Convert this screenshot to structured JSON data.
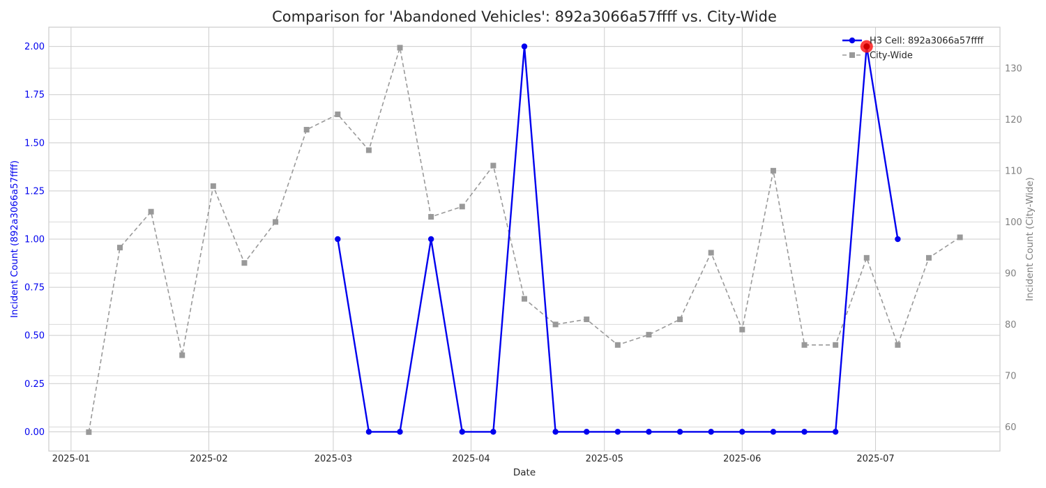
{
  "chart_data": {
    "type": "line",
    "title": "Comparison for 'Abandoned Vehicles': 892a3066a57ffff vs. City-Wide",
    "xlabel": "Date",
    "ylabel_left": "Incident Count (892a3066a57ffff)",
    "ylabel_right": "Incident Count (City-Wide)",
    "x_ticks": [
      "2025-01",
      "2025-02",
      "2025-03",
      "2025-04",
      "2025-05",
      "2025-06",
      "2025-07"
    ],
    "x_tick_dates": [
      "2025-01-01",
      "2025-02-01",
      "2025-03-01",
      "2025-04-01",
      "2025-05-01",
      "2025-06-01",
      "2025-07-01"
    ],
    "xlim": [
      "2024-12-27",
      "2025-07-29"
    ],
    "ylim_left": [
      -0.1,
      2.1
    ],
    "yticks_left": [
      0.0,
      0.25,
      0.5,
      0.75,
      1.0,
      1.25,
      1.5,
      1.75,
      2.0
    ],
    "ylim_right": [
      55.3,
      138.0
    ],
    "yticks_right": [
      60,
      70,
      80,
      90,
      100,
      110,
      120,
      130
    ],
    "grid": true,
    "legend_position": "top-right",
    "series": [
      {
        "name": "H3 Cell: 892a3066a57ffff",
        "axis": "left",
        "color": "#0000ee",
        "marker": "circle",
        "style": "solid",
        "x": [
          "2025-03-02",
          "2025-03-09",
          "2025-03-16",
          "2025-03-23",
          "2025-03-30",
          "2025-04-06",
          "2025-04-13",
          "2025-04-20",
          "2025-04-27",
          "2025-05-04",
          "2025-05-11",
          "2025-05-18",
          "2025-05-25",
          "2025-06-01",
          "2025-06-08",
          "2025-06-15",
          "2025-06-22",
          "2025-06-29",
          "2025-07-06"
        ],
        "y": [
          1,
          0,
          0,
          1,
          0,
          0,
          2,
          0,
          0,
          0,
          0,
          0,
          0,
          0,
          0,
          0,
          0,
          2,
          1
        ]
      },
      {
        "name": "City-Wide",
        "axis": "right",
        "color": "#999999",
        "marker": "square",
        "style": "dashed",
        "x": [
          "2025-01-05",
          "2025-01-12",
          "2025-01-19",
          "2025-01-26",
          "2025-02-02",
          "2025-02-09",
          "2025-02-16",
          "2025-02-23",
          "2025-03-02",
          "2025-03-09",
          "2025-03-16",
          "2025-03-23",
          "2025-03-30",
          "2025-04-06",
          "2025-04-13",
          "2025-04-20",
          "2025-04-27",
          "2025-05-04",
          "2025-05-11",
          "2025-05-18",
          "2025-05-25",
          "2025-06-01",
          "2025-06-08",
          "2025-06-15",
          "2025-06-22",
          "2025-06-29",
          "2025-07-06",
          "2025-07-13",
          "2025-07-20"
        ],
        "y": [
          59,
          95,
          102,
          74,
          107,
          92,
          100,
          118,
          121,
          114,
          134,
          101,
          103,
          111,
          85,
          80,
          81,
          76,
          78,
          81,
          94,
          79,
          110,
          76,
          76,
          93,
          76,
          93,
          97
        ]
      }
    ],
    "highlight": {
      "series": 0,
      "x": "2025-06-29",
      "y": 2,
      "color": "#ff1a1a"
    }
  }
}
